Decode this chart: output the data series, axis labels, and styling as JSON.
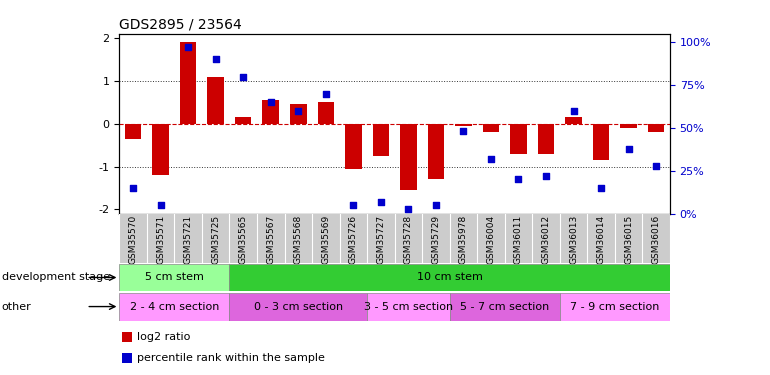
{
  "title": "GDS2895 / 23564",
  "samples": [
    "GSM35570",
    "GSM35571",
    "GSM35721",
    "GSM35725",
    "GSM35565",
    "GSM35567",
    "GSM35568",
    "GSM35569",
    "GSM35726",
    "GSM35727",
    "GSM35728",
    "GSM35729",
    "GSM35978",
    "GSM36004",
    "GSM36011",
    "GSM36012",
    "GSM36013",
    "GSM36014",
    "GSM36015",
    "GSM36016"
  ],
  "log2_ratio": [
    -0.35,
    -1.2,
    1.9,
    1.1,
    0.15,
    0.55,
    0.45,
    0.5,
    -1.05,
    -0.75,
    -1.55,
    -1.3,
    -0.05,
    -0.2,
    -0.7,
    -0.7,
    0.15,
    -0.85,
    -0.1,
    -0.2
  ],
  "percentile": [
    15,
    5,
    97,
    90,
    80,
    65,
    60,
    70,
    5,
    7,
    3,
    5,
    48,
    32,
    20,
    22,
    60,
    15,
    38,
    28
  ],
  "ylim": [
    -2.1,
    2.1
  ],
  "y2lim": [
    0,
    105
  ],
  "bar_color": "#cc0000",
  "scatter_color": "#0000cc",
  "hline_color": "#cc0000",
  "dotted_color": "#333333",
  "dev_stage_groups": [
    {
      "label": "5 cm stem",
      "start": 0,
      "end": 4,
      "color": "#99ff99"
    },
    {
      "label": "10 cm stem",
      "start": 4,
      "end": 20,
      "color": "#33cc33"
    }
  ],
  "other_groups": [
    {
      "label": "2 - 4 cm section",
      "start": 0,
      "end": 4,
      "color": "#ff99ff"
    },
    {
      "label": "0 - 3 cm section",
      "start": 4,
      "end": 9,
      "color": "#dd66dd"
    },
    {
      "label": "3 - 5 cm section",
      "start": 9,
      "end": 12,
      "color": "#ff99ff"
    },
    {
      "label": "5 - 7 cm section",
      "start": 12,
      "end": 16,
      "color": "#dd66dd"
    },
    {
      "label": "7 - 9 cm section",
      "start": 16,
      "end": 20,
      "color": "#ff99ff"
    }
  ],
  "legend_items": [
    {
      "label": "log2 ratio",
      "color": "#cc0000"
    },
    {
      "label": "percentile rank within the sample",
      "color": "#0000cc"
    }
  ],
  "right_ytick_labels": [
    "0%",
    "25%",
    "50%",
    "75%",
    "100%"
  ],
  "right_ytick_values": [
    0,
    25,
    50,
    75,
    100
  ],
  "left_ytick_labels": [
    "-2",
    "-1",
    "0",
    "1",
    "2"
  ],
  "left_ytick_values": [
    -2,
    -1,
    0,
    1,
    2
  ]
}
